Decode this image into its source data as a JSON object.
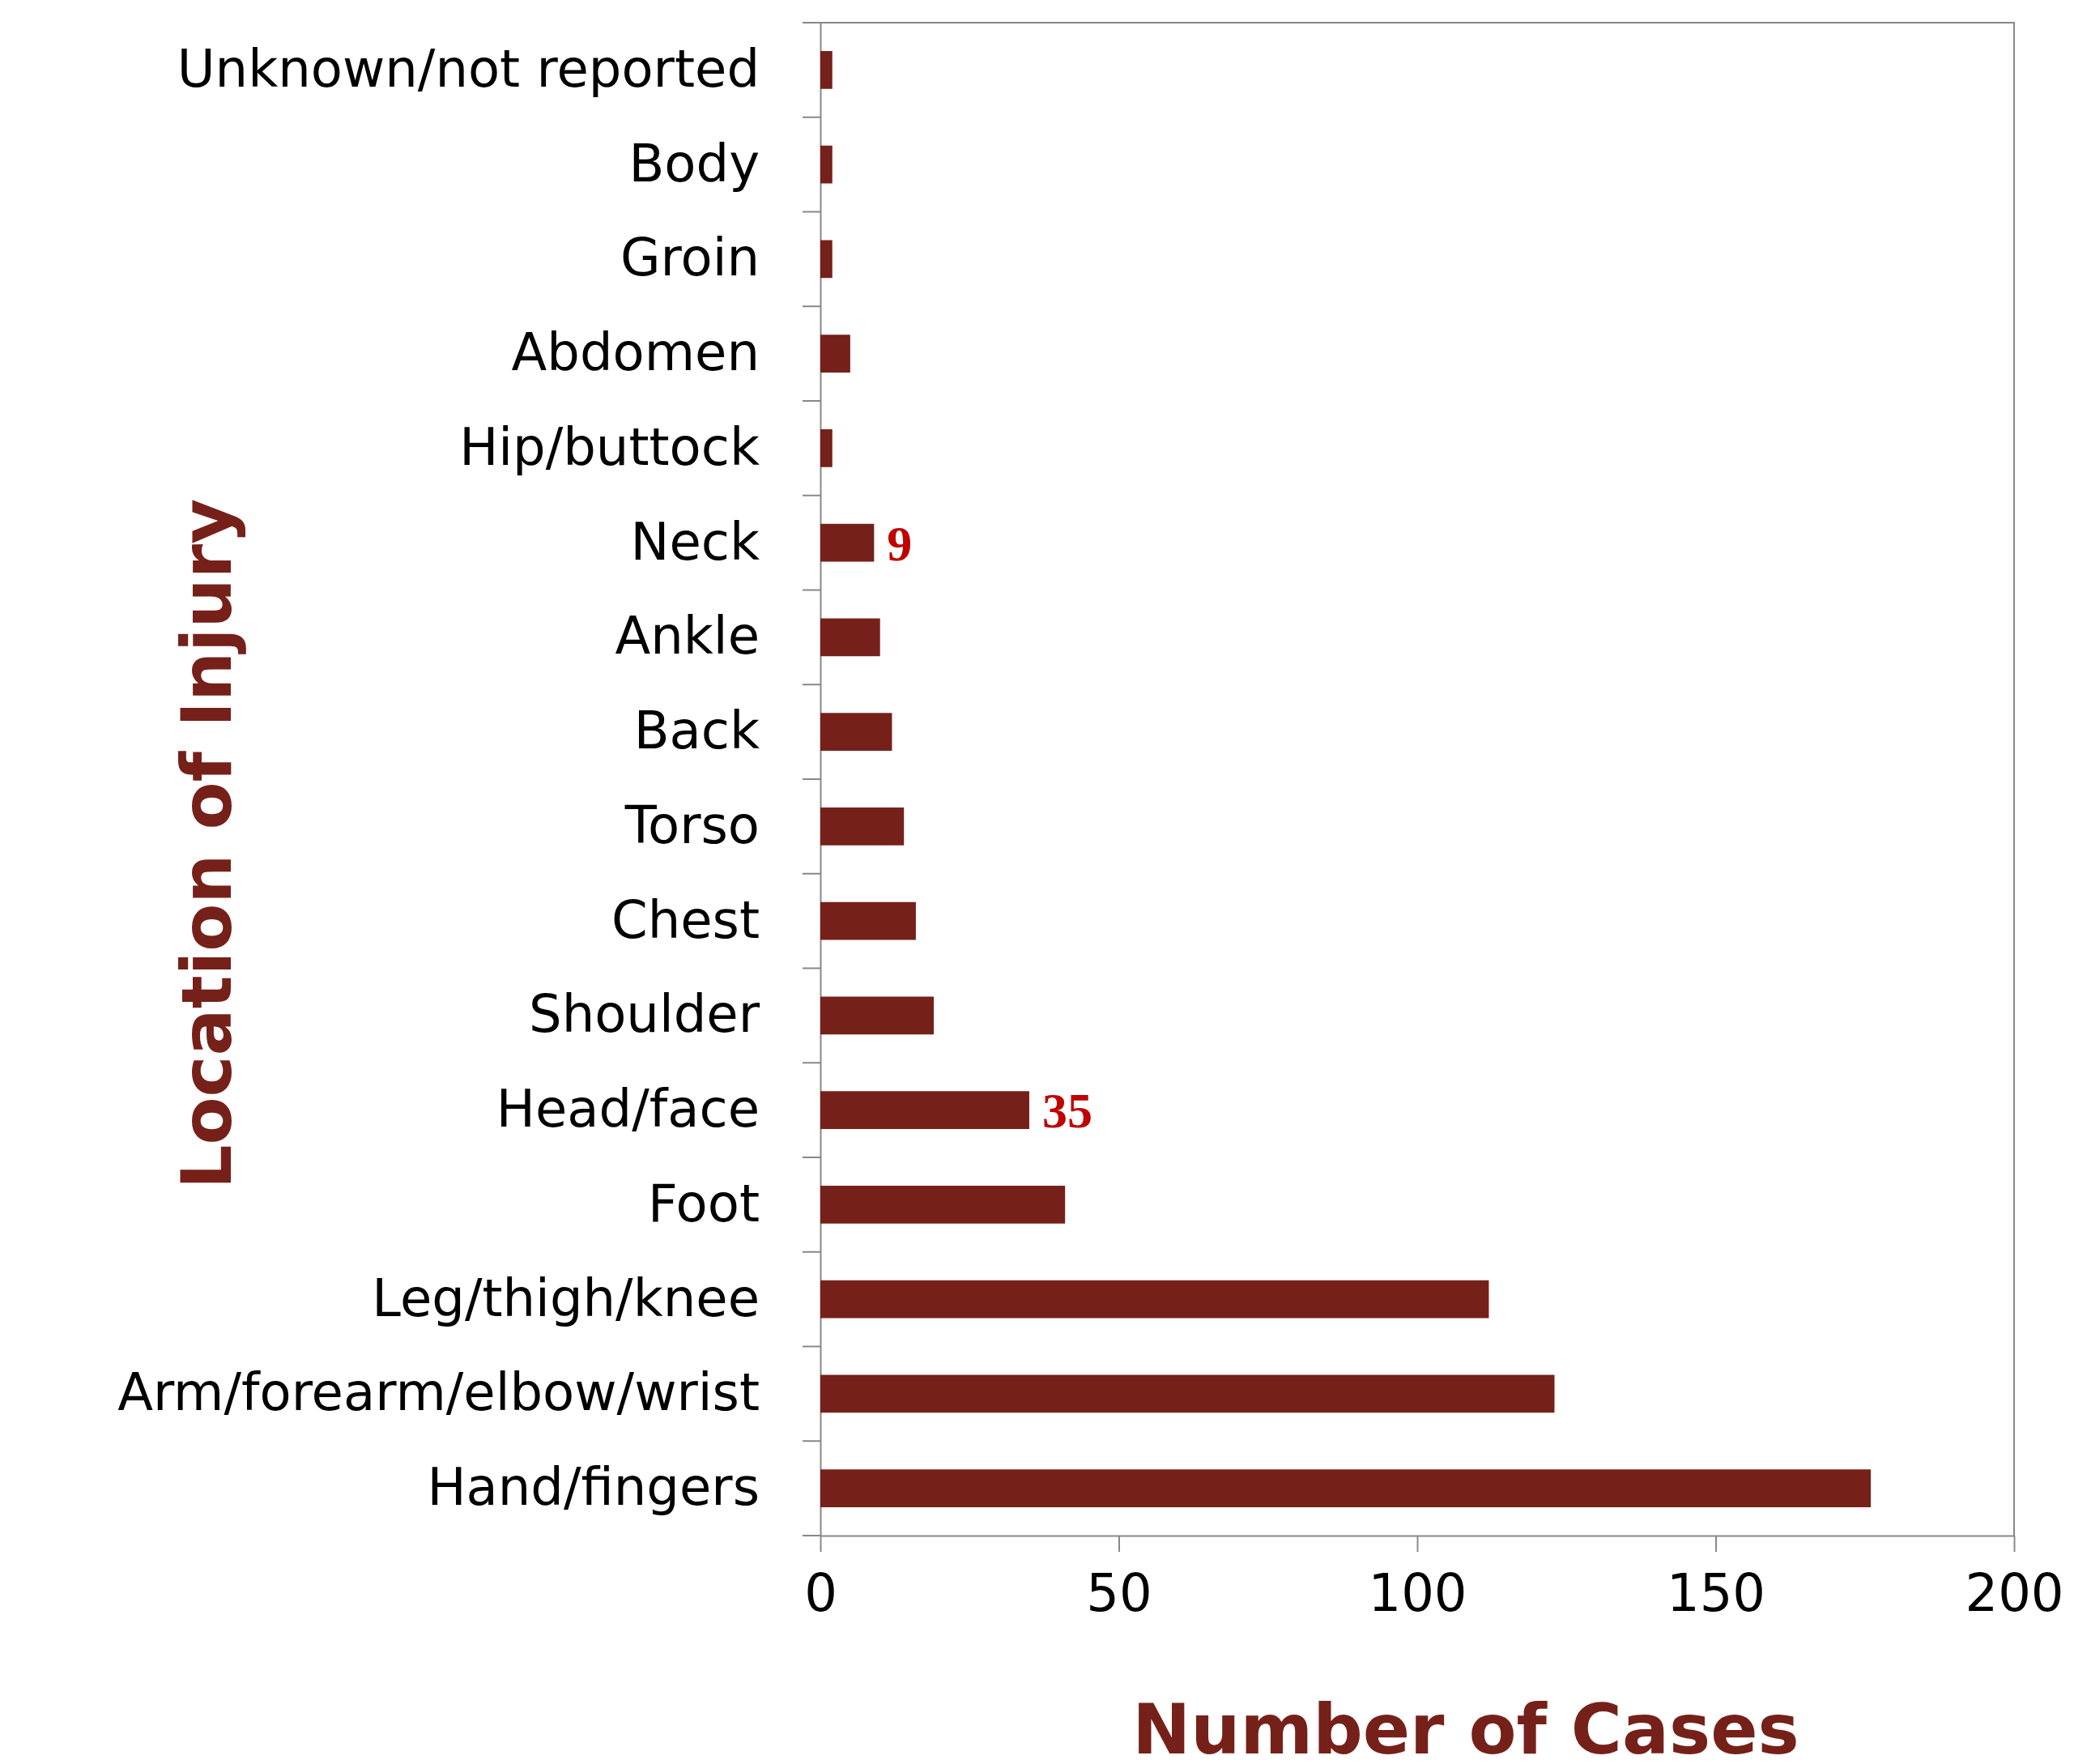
{
  "chart_data": {
    "type": "bar",
    "orientation": "horizontal",
    "xlabel": "Number of Cases",
    "ylabel": "Location of Injury",
    "categories": [
      "Unknown/not reported",
      "Body",
      "Groin",
      "Abdomen",
      "Hip/buttock",
      "Neck",
      "Ankle",
      "Back",
      "Torso",
      "Chest",
      "Shoulder",
      "Head/face",
      "Foot",
      "Leg/thigh/knee",
      "Arm/forearm/elbow/wrist",
      "Hand/fingers"
    ],
    "values": [
      2,
      2,
      2,
      5,
      2,
      9,
      10,
      12,
      14,
      16,
      19,
      35,
      41,
      112,
      123,
      176
    ],
    "value_labels": [
      null,
      null,
      null,
      null,
      null,
      "9",
      null,
      null,
      null,
      null,
      null,
      "35",
      null,
      null,
      null,
      null
    ],
    "color": "#76201a",
    "xlim": [
      0,
      200
    ],
    "xticks": [
      0,
      50,
      100,
      150,
      200
    ],
    "grid": false
  }
}
